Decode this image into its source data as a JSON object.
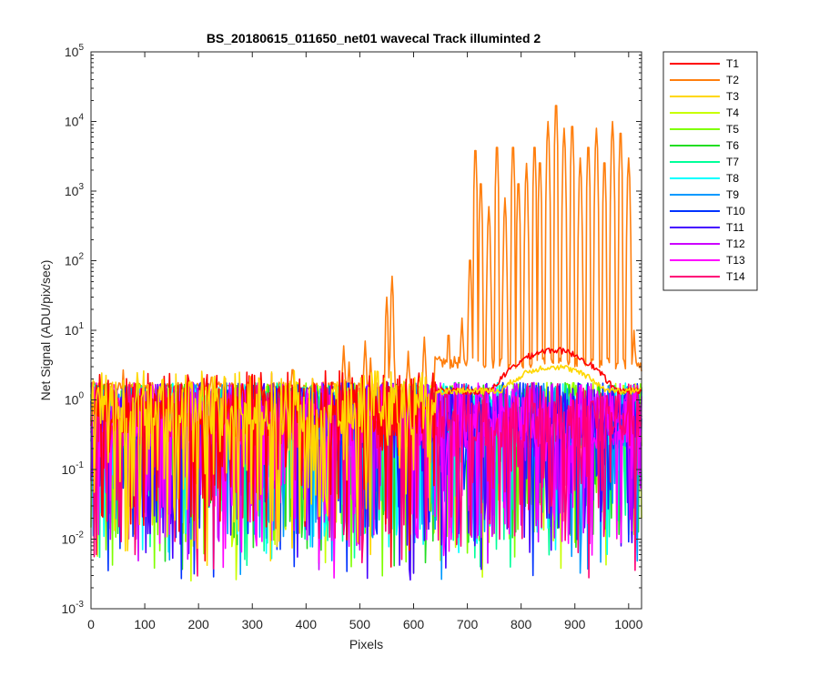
{
  "chart_data": {
    "type": "line",
    "title": "BS_20180615_011650_net01   wavecal          Track illuminted 2",
    "xlabel": "Pixels",
    "ylabel": "Net Signal (ADU/pix/sec)",
    "xlim": [
      0,
      1024
    ],
    "ylim": [
      0.001,
      100000
    ],
    "yscale": "log",
    "grid": false,
    "legend_position": "outside-top-right",
    "xticks": [
      0,
      100,
      200,
      300,
      400,
      500,
      600,
      700,
      800,
      900,
      1000
    ],
    "xtick_labels": [
      "0",
      "100",
      "200",
      "300",
      "400",
      "500",
      "600",
      "700",
      "800",
      "900",
      "1000"
    ],
    "yticks": [
      0.001,
      0.01,
      0.1,
      1,
      10,
      100,
      1000,
      10000,
      100000
    ],
    "ytick_labels": [
      {
        "base": "10",
        "exp": "-3"
      },
      {
        "base": "10",
        "exp": "-2"
      },
      {
        "base": "10",
        "exp": "-1"
      },
      {
        "base": "10",
        "exp": "0"
      },
      {
        "base": "10",
        "exp": "1"
      },
      {
        "base": "10",
        "exp": "2"
      },
      {
        "base": "10",
        "exp": "3"
      },
      {
        "base": "10",
        "exp": "4"
      },
      {
        "base": "10",
        "exp": "5"
      }
    ],
    "series": [
      {
        "name": "T1",
        "color": "#ff0000",
        "profile": "broad",
        "peak": 5.2,
        "center": 860,
        "width": 100
      },
      {
        "name": "T2",
        "color": "#ff7f0e",
        "profile": "emission-lines",
        "continuum": 3.5,
        "lines": [
          [
            60,
            2.7
          ],
          [
            225,
            2.5
          ],
          [
            375,
            3.2
          ],
          [
            470,
            6
          ],
          [
            480,
            3.5
          ],
          [
            510,
            7
          ],
          [
            520,
            4
          ],
          [
            550,
            30
          ],
          [
            560,
            60
          ],
          [
            590,
            5
          ],
          [
            620,
            8
          ],
          [
            665,
            10
          ],
          [
            690,
            15
          ],
          [
            705,
            120
          ],
          [
            715,
            4500
          ],
          [
            725,
            1500
          ],
          [
            740,
            600
          ],
          [
            755,
            5000
          ],
          [
            770,
            800
          ],
          [
            785,
            5000
          ],
          [
            795,
            1500
          ],
          [
            810,
            2500
          ],
          [
            825,
            5000
          ],
          [
            835,
            3000
          ],
          [
            850,
            10000
          ],
          [
            865,
            20000
          ],
          [
            880,
            8000
          ],
          [
            895,
            10000
          ],
          [
            910,
            3000
          ],
          [
            925,
            5000
          ],
          [
            940,
            8000
          ],
          [
            955,
            3000
          ],
          [
            970,
            10000
          ],
          [
            985,
            8000
          ],
          [
            1000,
            3000
          ],
          [
            1010,
            10
          ]
        ]
      },
      {
        "name": "T3",
        "color": "#ffd700",
        "profile": "broad",
        "peak": 3.0,
        "center": 860,
        "width": 110
      },
      {
        "name": "T4",
        "color": "#c8ff00",
        "profile": "noise"
      },
      {
        "name": "T5",
        "color": "#7fff00",
        "profile": "noise"
      },
      {
        "name": "T6",
        "color": "#22dd22",
        "profile": "noise"
      },
      {
        "name": "T7",
        "color": "#00ff99",
        "profile": "noise"
      },
      {
        "name": "T8",
        "color": "#00ffff",
        "profile": "noise"
      },
      {
        "name": "T9",
        "color": "#0099ff",
        "profile": "noise"
      },
      {
        "name": "T10",
        "color": "#0033ff",
        "profile": "noise"
      },
      {
        "name": "T11",
        "color": "#4400ff",
        "profile": "noise"
      },
      {
        "name": "T12",
        "color": "#cc00ff",
        "profile": "noise"
      },
      {
        "name": "T13",
        "color": "#ff00ff",
        "profile": "noise"
      },
      {
        "name": "T14",
        "color": "#ff0077",
        "profile": "noise"
      }
    ]
  }
}
